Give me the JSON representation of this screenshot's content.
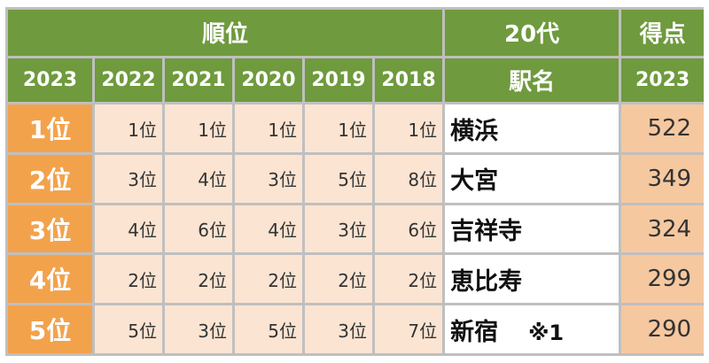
{
  "header": {
    "rank_group": "順位",
    "age_group": "20代",
    "score_group": "得点",
    "years": [
      "2023",
      "2022",
      "2021",
      "2020",
      "2019",
      "2018"
    ],
    "station_label": "駅名",
    "score_year": "2023"
  },
  "rows": [
    {
      "rank": "1位",
      "history": [
        "1位",
        "1位",
        "1位",
        "1位",
        "1位"
      ],
      "station": "横浜",
      "note": "",
      "score": "522"
    },
    {
      "rank": "2位",
      "history": [
        "3位",
        "4位",
        "3位",
        "5位",
        "8位"
      ],
      "station": "大宮",
      "note": "",
      "score": "349"
    },
    {
      "rank": "3位",
      "history": [
        "4位",
        "6位",
        "4位",
        "3位",
        "6位"
      ],
      "station": "吉祥寺",
      "note": "",
      "score": "324"
    },
    {
      "rank": "4位",
      "history": [
        "2位",
        "2位",
        "2位",
        "2位",
        "2位"
      ],
      "station": "恵比寿",
      "note": "",
      "score": "299"
    },
    {
      "rank": "5位",
      "history": [
        "5位",
        "3位",
        "5位",
        "3位",
        "7位"
      ],
      "station": "新宿",
      "note": "※1",
      "score": "290"
    }
  ]
}
